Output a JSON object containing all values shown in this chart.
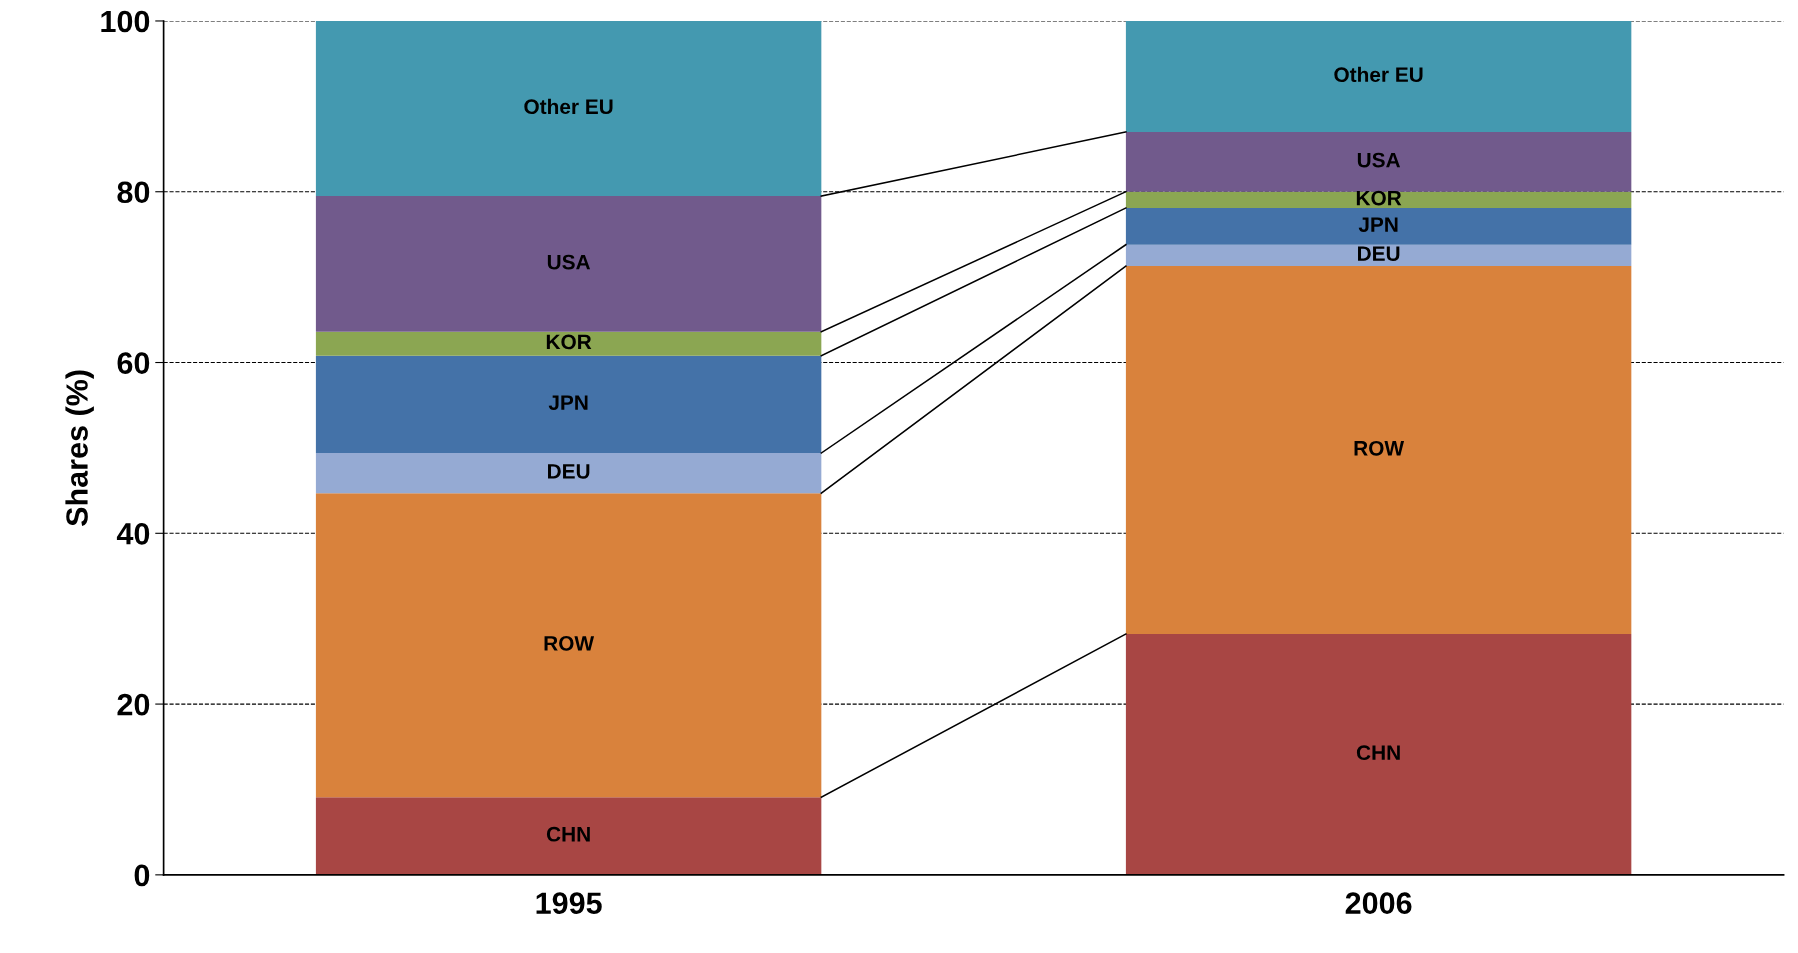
{
  "chart_data": {
    "type": "bar",
    "stacked": true,
    "ylabel": "Shares (%)",
    "categories": [
      "1995",
      "2006"
    ],
    "series": [
      {
        "name": "CHN",
        "color": "#a84644",
        "values": [
          9.1,
          28.2
        ]
      },
      {
        "name": "ROW",
        "color": "#d9823c",
        "values": [
          35.6,
          43.1
        ]
      },
      {
        "name": "DEU",
        "color": "#95aad3",
        "values": [
          4.7,
          2.5
        ]
      },
      {
        "name": "JPN",
        "color": "#4472a8",
        "values": [
          11.4,
          4.3
        ]
      },
      {
        "name": "KOR",
        "color": "#8ba652",
        "values": [
          2.8,
          1.9
        ]
      },
      {
        "name": "USA",
        "color": "#715a8c",
        "values": [
          15.9,
          7.0
        ]
      },
      {
        "name": "Other EU",
        "color": "#4499b0",
        "values": [
          20.5,
          13.0
        ]
      }
    ],
    "ylim": [
      0,
      100
    ],
    "yticks": [
      0,
      20,
      40,
      60,
      80,
      100
    ],
    "grid": "y",
    "legend": false
  }
}
